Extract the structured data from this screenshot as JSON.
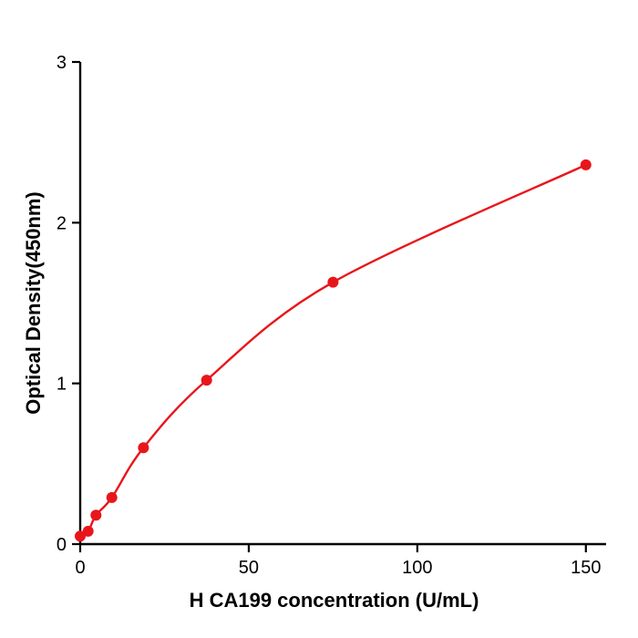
{
  "chart_data": {
    "type": "scatter-line",
    "title": "",
    "xlabel": "H  CA199 concentration (U/mL)",
    "ylabel": "Optical Density(450nm)",
    "x": [
      0,
      2.34,
      4.69,
      9.38,
      18.75,
      37.5,
      75,
      150
    ],
    "y": [
      0.05,
      0.08,
      0.18,
      0.29,
      0.6,
      1.02,
      1.63,
      2.36
    ],
    "xlim": [
      0,
      156
    ],
    "ylim": [
      0,
      3
    ],
    "x_ticks": [
      0,
      50,
      100,
      150
    ],
    "y_ticks": [
      0,
      1,
      2,
      3
    ],
    "line_color": "#e8161b",
    "marker_color": "#e8161b",
    "axis_color": "#000000",
    "background": "#ffffff",
    "grid": false,
    "legend": false,
    "marker_radius": 6
  }
}
